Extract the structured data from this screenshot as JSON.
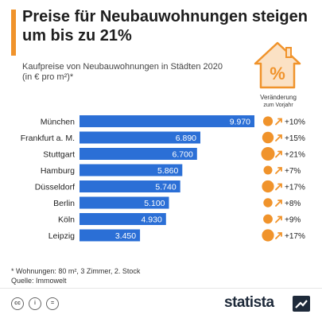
{
  "header": {
    "title": "Preise für Neubauwohnungen steigen um bis zu 21%",
    "subtitle": "Kaufpreise von Neubauwohnungen in Städten 2020 (in € pro m²)*"
  },
  "change_header": {
    "line1": "Veränderung",
    "line2": "zum Vorjahr"
  },
  "house_icon_text": "%",
  "chart_data": {
    "type": "bar",
    "orientation": "horizontal",
    "title": "Preise für Neubauwohnungen steigen um bis zu 21%",
    "subtitle": "Kaufpreise von Neubauwohnungen in Städten 2020 (in € pro m²)*",
    "categories": [
      "München",
      "Frankfurt a. M.",
      "Stuttgart",
      "Hamburg",
      "Düsseldorf",
      "Berlin",
      "Köln",
      "Leipzig"
    ],
    "values": [
      9970,
      6890,
      6700,
      5860,
      5740,
      5100,
      4930,
      3450
    ],
    "value_labels": [
      "9.970",
      "6.890",
      "6.700",
      "5.860",
      "5.740",
      "5.100",
      "4.930",
      "3.450"
    ],
    "changes": [
      "+10%",
      "+15%",
      "+21%",
      "+7%",
      "+17%",
      "+8%",
      "+9%",
      "+17%"
    ],
    "change_values": [
      10,
      15,
      21,
      7,
      17,
      8,
      9,
      17
    ],
    "xlim": [
      0,
      9970
    ],
    "grid": false,
    "bar_color": "#2b6fd6",
    "accent_color": "#f0932b"
  },
  "footnote": {
    "line1": "* Wohnungen: 80 m², 3 Zimmer, 2. Stock",
    "line2": "Quelle: Immowelt"
  },
  "footer": {
    "brand": "statista",
    "license_icons": [
      "cc-icon",
      "by-icon",
      "nd-icon"
    ]
  }
}
